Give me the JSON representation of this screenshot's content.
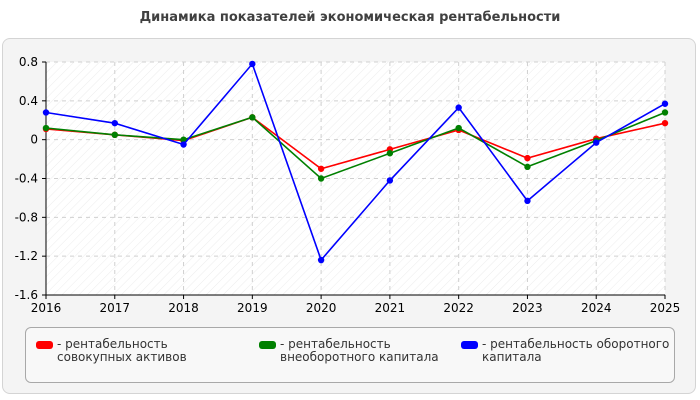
{
  "chart_data": {
    "type": "line",
    "title": "Динамика показателей экономическая рентабельности",
    "xlabel": "",
    "ylabel": "",
    "x": [
      "2016",
      "2017",
      "2018",
      "2019",
      "2020",
      "2021",
      "2022",
      "2023",
      "2024",
      "2025"
    ],
    "ylim": [
      -1.6,
      0.8
    ],
    "yticks": [
      0.8,
      0.4,
      0,
      -0.4,
      -0.8,
      -1.2,
      -1.6
    ],
    "ytick_labels": [
      "0.8",
      "0.4",
      "0",
      "-0.4",
      "-0.8",
      "-1.2",
      "-1.6"
    ],
    "grid": true,
    "legend_position": "bottom",
    "series": [
      {
        "name": "рентабельность совокупных активов",
        "color": "#ff0000",
        "values": [
          0.11,
          0.05,
          -0.01,
          0.23,
          -0.3,
          -0.1,
          0.1,
          -0.19,
          0.01,
          0.17
        ]
      },
      {
        "name": "рентабельность внеоборотного капитала",
        "color": "#008000",
        "values": [
          0.12,
          0.05,
          0.0,
          0.23,
          -0.4,
          -0.14,
          0.12,
          -0.28,
          -0.01,
          0.28
        ]
      },
      {
        "name": "рентабельность оборотного капитала",
        "color": "#0000ff",
        "values": [
          0.28,
          0.17,
          -0.05,
          0.78,
          -1.24,
          -0.42,
          0.33,
          -0.63,
          -0.03,
          0.37
        ]
      }
    ]
  }
}
